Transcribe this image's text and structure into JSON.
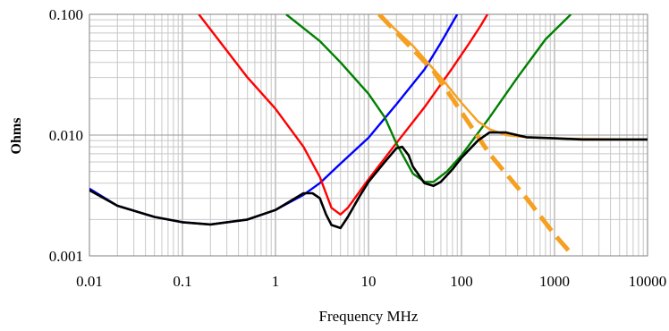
{
  "chart_data": {
    "type": "line",
    "title": "",
    "xlabel": "Frequency MHz",
    "ylabel": "Ohms",
    "x_scale": "log",
    "y_scale": "log",
    "xlim": [
      0.01,
      10000
    ],
    "ylim": [
      0.001,
      0.1
    ],
    "x_ticks": [
      "0.01",
      "0.1",
      "1",
      "10",
      "100",
      "1000",
      "10000"
    ],
    "y_ticks": [
      "0.001",
      "0.010",
      "0.100"
    ],
    "grid": true,
    "series": [
      {
        "color": "#0000ff",
        "style": "solid",
        "points": [
          [
            0.01,
            0.0036
          ],
          [
            0.02,
            0.0026
          ],
          [
            0.05,
            0.0021
          ],
          [
            0.1,
            0.0019
          ],
          [
            0.2,
            0.00182
          ],
          [
            0.5,
            0.002
          ],
          [
            1,
            0.0024
          ],
          [
            2,
            0.0032
          ],
          [
            3,
            0.004
          ],
          [
            5,
            0.0058
          ],
          [
            10,
            0.0095
          ],
          [
            20,
            0.018
          ],
          [
            40,
            0.035
          ],
          [
            60,
            0.058
          ],
          [
            90,
            0.1
          ]
        ]
      },
      {
        "color": "#ff0000",
        "style": "solid",
        "points": [
          [
            0.15,
            0.1
          ],
          [
            0.3,
            0.05
          ],
          [
            0.5,
            0.03
          ],
          [
            1,
            0.0165
          ],
          [
            2,
            0.008
          ],
          [
            3,
            0.0045
          ],
          [
            4,
            0.0025
          ],
          [
            5,
            0.0022
          ],
          [
            6,
            0.0025
          ],
          [
            8,
            0.0034
          ],
          [
            10,
            0.0043
          ],
          [
            20,
            0.0086
          ],
          [
            40,
            0.017
          ],
          [
            80,
            0.036
          ],
          [
            120,
            0.057
          ],
          [
            160,
            0.08
          ],
          [
            190,
            0.1
          ]
        ]
      },
      {
        "color": "#008000",
        "style": "solid",
        "points": [
          [
            1.3,
            0.1
          ],
          [
            3,
            0.06
          ],
          [
            5,
            0.04
          ],
          [
            10,
            0.022
          ],
          [
            15,
            0.014
          ],
          [
            20,
            0.0085
          ],
          [
            30,
            0.0048
          ],
          [
            40,
            0.0041
          ],
          [
            50,
            0.0041
          ],
          [
            70,
            0.005
          ],
          [
            100,
            0.0068
          ],
          [
            200,
            0.014
          ],
          [
            400,
            0.03
          ],
          [
            800,
            0.062
          ],
          [
            1500,
            0.1
          ]
        ]
      },
      {
        "color": "#f5a020",
        "style": "dashed",
        "points": [
          [
            13,
            0.1
          ],
          [
            50,
            0.034
          ],
          [
            100,
            0.0155
          ],
          [
            200,
            0.007
          ],
          [
            500,
            0.003
          ],
          [
            1000,
            0.0015
          ],
          [
            1500,
            0.00105
          ]
        ]
      },
      {
        "color": "#f5a020",
        "style": "solid",
        "points": [
          [
            13,
            0.1
          ],
          [
            30,
            0.055
          ],
          [
            60,
            0.03
          ],
          [
            100,
            0.0185
          ],
          [
            150,
            0.013
          ],
          [
            200,
            0.0112
          ],
          [
            300,
            0.01
          ],
          [
            500,
            0.0096
          ],
          [
            1000,
            0.0094
          ],
          [
            2000,
            0.0093
          ],
          [
            10000,
            0.0092
          ]
        ]
      },
      {
        "color": "#000000",
        "style": "solid",
        "points": [
          [
            0.01,
            0.0035
          ],
          [
            0.02,
            0.0026
          ],
          [
            0.05,
            0.0021
          ],
          [
            0.1,
            0.0019
          ],
          [
            0.2,
            0.00182
          ],
          [
            0.5,
            0.002
          ],
          [
            1,
            0.0024
          ],
          [
            2,
            0.0033
          ],
          [
            2.5,
            0.0033
          ],
          [
            3,
            0.003
          ],
          [
            3.5,
            0.0022
          ],
          [
            4,
            0.0018
          ],
          [
            5,
            0.0017
          ],
          [
            6,
            0.0021
          ],
          [
            8,
            0.0031
          ],
          [
            10,
            0.0041
          ],
          [
            15,
            0.006
          ],
          [
            20,
            0.0078
          ],
          [
            23,
            0.008
          ],
          [
            27,
            0.0068
          ],
          [
            30,
            0.0055
          ],
          [
            40,
            0.004
          ],
          [
            50,
            0.0038
          ],
          [
            60,
            0.0041
          ],
          [
            80,
            0.0052
          ],
          [
            100,
            0.0065
          ],
          [
            150,
            0.009
          ],
          [
            200,
            0.0105
          ],
          [
            300,
            0.0105
          ],
          [
            500,
            0.0096
          ],
          [
            1000,
            0.0094
          ],
          [
            2000,
            0.0092
          ],
          [
            10000,
            0.0092
          ]
        ]
      }
    ]
  }
}
